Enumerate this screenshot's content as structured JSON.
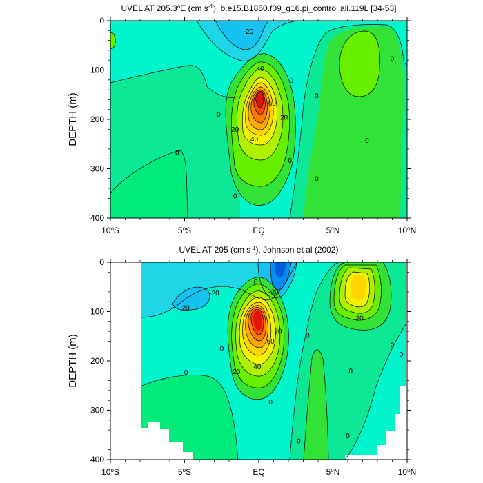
{
  "chart_data": [
    {
      "type": "contour",
      "title": "UVEL AT 205.3°E (cm s⁻¹), b.e15.B1850.f09_g16.pi_control.all.119L [34-53]",
      "title_parts": {
        "pre": "UVEL AT 205.3",
        "sup1": "o",
        "mid": "E (cm s",
        "sup2": "-1",
        "post": "), b.e15.B1850.f09_g16.pi_control.all.119L [34-53]"
      },
      "ylabel": "DEPTH (m)",
      "x_ticks": [
        {
          "v": -10,
          "t": "10",
          "s": "o",
          "e": "S"
        },
        {
          "v": -5,
          "t": "5",
          "s": "o",
          "e": "S"
        },
        {
          "v": 0,
          "t": "EQ",
          "s": "",
          "e": ""
        },
        {
          "v": 5,
          "t": "5",
          "s": "o",
          "e": "N"
        },
        {
          "v": 10,
          "t": "10",
          "s": "o",
          "e": "N"
        }
      ],
      "y_ticks": [
        0,
        100,
        200,
        300,
        400
      ],
      "xlim": [
        -10,
        10
      ],
      "ylim": [
        400,
        0
      ],
      "contour_interval": 10,
      "contour_labels": [
        {
          "x": -0.7,
          "y": 22,
          "t": "-20"
        },
        {
          "x": 0.1,
          "y": 97,
          "t": "40"
        },
        {
          "x": 2.2,
          "y": 122,
          "t": "0"
        },
        {
          "x": 0.9,
          "y": 167,
          "t": "60"
        },
        {
          "x": -2.7,
          "y": 190,
          "t": "0"
        },
        {
          "x": -1.6,
          "y": 220,
          "t": "20"
        },
        {
          "x": -0.3,
          "y": 240,
          "t": "40"
        },
        {
          "x": 1.7,
          "y": 196,
          "t": "20"
        },
        {
          "x": -5.5,
          "y": 267,
          "t": "0"
        },
        {
          "x": 2.1,
          "y": 283,
          "t": "0"
        },
        {
          "x": -1.6,
          "y": 355,
          "t": "0"
        },
        {
          "x": 3.9,
          "y": 152,
          "t": "0"
        },
        {
          "x": 3.9,
          "y": 320,
          "t": "0"
        },
        {
          "x": 9.0,
          "y": 77,
          "t": "0"
        },
        {
          "x": 7.3,
          "y": 243,
          "t": "0"
        }
      ]
    },
    {
      "type": "contour",
      "title": "UVEL AT 205 (cm s⁻¹), Johnson et al (2002)",
      "title_parts": {
        "pre": "UVEL AT 205 (cm s",
        "sup1": "",
        "mid": "",
        "sup2": "-1",
        "post": "), Johnson et al (2002)"
      },
      "ylabel": "DEPTH (m)",
      "x_ticks": [
        {
          "v": -10,
          "t": "10",
          "s": "o",
          "e": "S"
        },
        {
          "v": -5,
          "t": "5",
          "s": "o",
          "e": "S"
        },
        {
          "v": 0,
          "t": "EQ",
          "s": "",
          "e": ""
        },
        {
          "v": 5,
          "t": "5",
          "s": "o",
          "e": "N"
        },
        {
          "v": 10,
          "t": "10",
          "s": "o",
          "e": "N"
        }
      ],
      "y_ticks": [
        0,
        100,
        200,
        300,
        400
      ],
      "xlim": [
        -10,
        10
      ],
      "ylim": [
        400,
        0
      ],
      "contour_interval": 10,
      "contour_labels": [
        {
          "x": -5,
          "y": 92,
          "t": "-20"
        },
        {
          "x": -3,
          "y": 62,
          "t": "-20"
        },
        {
          "x": -0.2,
          "y": 40,
          "t": "0"
        },
        {
          "x": 1.0,
          "y": 60,
          "t": "-20"
        },
        {
          "x": 1.3,
          "y": 140,
          "t": "20"
        },
        {
          "x": 0.8,
          "y": 160,
          "t": "60"
        },
        {
          "x": -2.5,
          "y": 175,
          "t": "0"
        },
        {
          "x": -0.1,
          "y": 212,
          "t": "40"
        },
        {
          "x": -1.5,
          "y": 222,
          "t": "20"
        },
        {
          "x": 3.3,
          "y": 148,
          "t": "0"
        },
        {
          "x": 6.8,
          "y": 113,
          "t": "20"
        },
        {
          "x": 9.0,
          "y": 168,
          "t": "0"
        },
        {
          "x": 9.6,
          "y": 187,
          "t": "0"
        },
        {
          "x": -4.9,
          "y": 223,
          "t": "0"
        },
        {
          "x": 6.2,
          "y": 220,
          "t": "0"
        },
        {
          "x": 0.8,
          "y": 283,
          "t": "0"
        },
        {
          "x": 2.7,
          "y": 362,
          "t": "0"
        },
        {
          "x": 6.0,
          "y": 352,
          "t": "0"
        }
      ]
    }
  ]
}
